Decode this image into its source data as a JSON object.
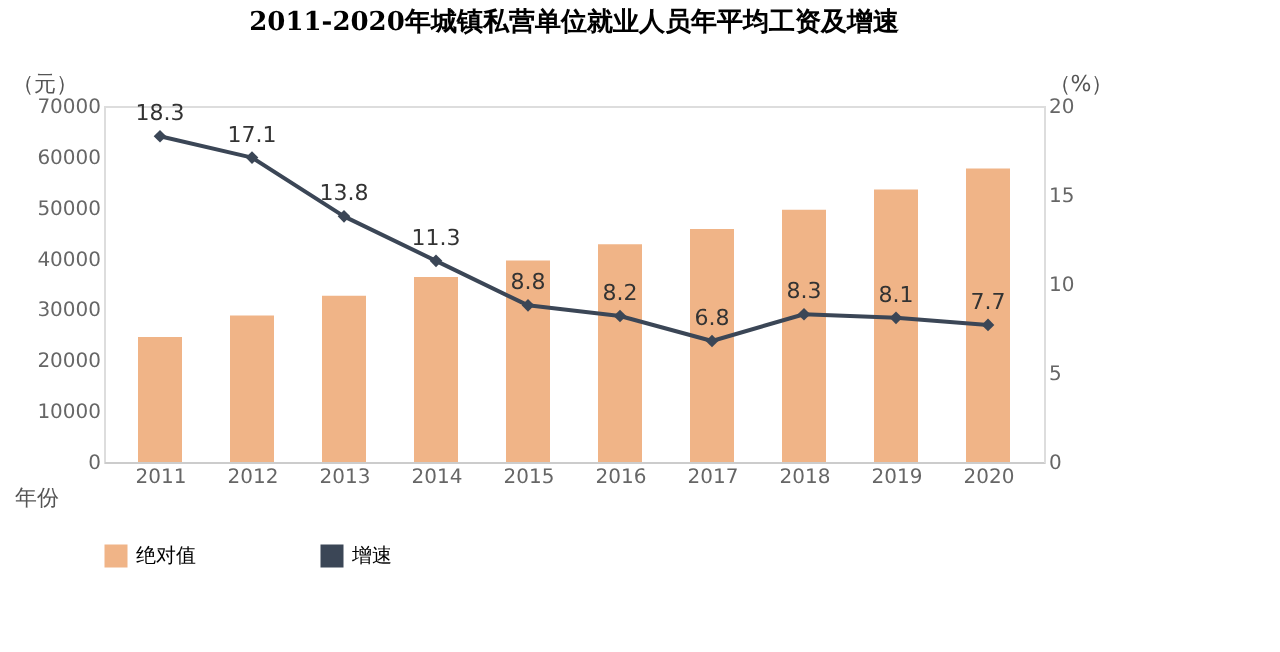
{
  "chart_data": {
    "type": "bar",
    "title": "2011-2020年城镇私营单位就业人员年平均工资及增速",
    "xlabel": "年份",
    "ylabel": "（元）",
    "y2label": "（%）",
    "categories": [
      "2011",
      "2012",
      "2013",
      "2014",
      "2015",
      "2016",
      "2017",
      "2018",
      "2019",
      "2020"
    ],
    "series": [
      {
        "name": "绝对值",
        "color": "#f0b487",
        "values": [
          24600,
          28800,
          32700,
          36400,
          39600,
          42800,
          45800,
          49600,
          53600,
          57700
        ]
      },
      {
        "name": "增速",
        "type": "line",
        "axis": "y2",
        "color": "#3b4656",
        "marker": "diamond",
        "data_labels": true,
        "values": [
          18.3,
          17.1,
          13.8,
          11.3,
          8.8,
          8.2,
          6.8,
          8.3,
          8.1,
          7.7
        ]
      }
    ],
    "ylim": [
      0,
      70000
    ],
    "yticks": [
      0,
      10000,
      20000,
      30000,
      40000,
      50000,
      60000,
      70000
    ],
    "y2lim": [
      0,
      20
    ],
    "y2ticks": [
      0,
      5,
      10,
      15,
      20
    ],
    "grid": false,
    "legend": "bottom"
  }
}
